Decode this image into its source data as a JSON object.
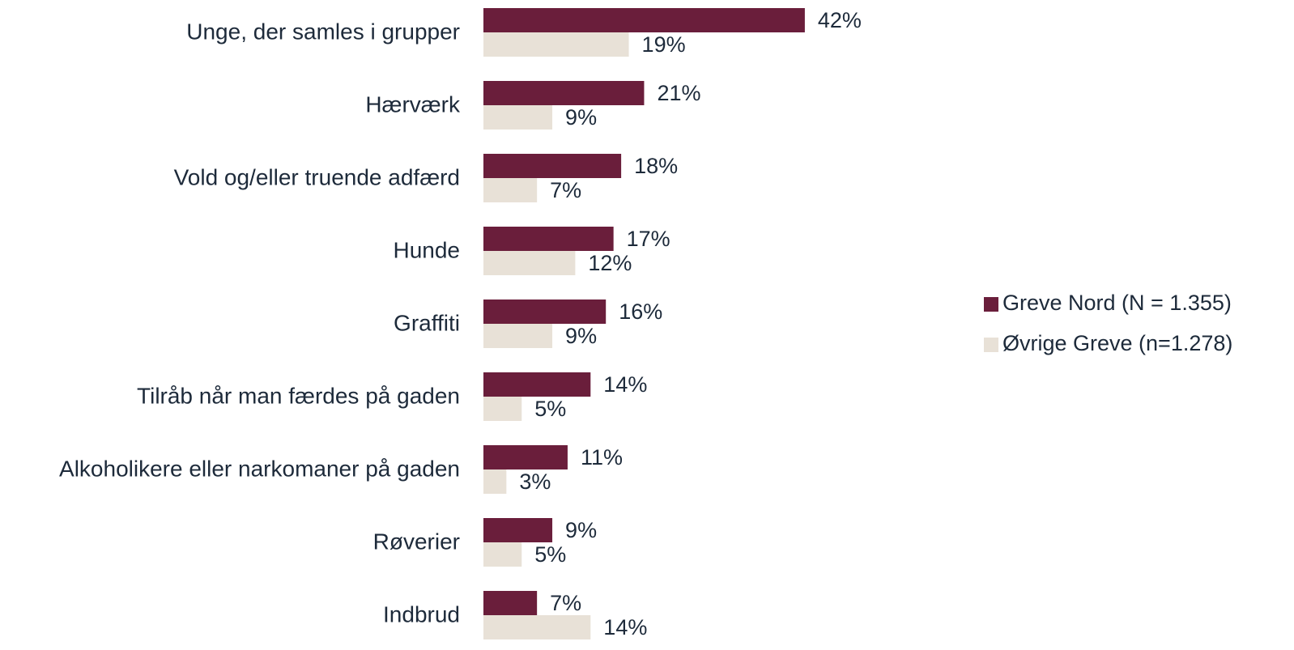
{
  "chart_data": {
    "type": "bar",
    "orientation": "horizontal",
    "categories": [
      "Unge, der samles i grupper",
      "Hærværk",
      "Vold og/eller truende adfærd",
      "Hunde",
      "Graffiti",
      "Tilråb når man færdes på gaden",
      "Alkoholikere eller narkomaner på gaden",
      "Røverier",
      "Indbrud"
    ],
    "series": [
      {
        "name": "Greve Nord (N = 1.355)",
        "color": "#6a1e3b",
        "values": [
          42,
          21,
          18,
          17,
          16,
          14,
          11,
          9,
          7
        ],
        "value_labels": [
          "42%",
          "21%",
          "18%",
          "17%",
          "16%",
          "14%",
          "11%",
          "9%",
          "7%"
        ]
      },
      {
        "name": "Øvrige Greve (n=1.278)",
        "color": "#e8e1d7",
        "values": [
          19,
          9,
          7,
          12,
          9,
          5,
          3,
          5,
          14
        ],
        "value_labels": [
          "19%",
          "9%",
          "7%",
          "12%",
          "9%",
          "5%",
          "3%",
          "5%",
          "14%"
        ]
      }
    ],
    "legend": "right"
  }
}
